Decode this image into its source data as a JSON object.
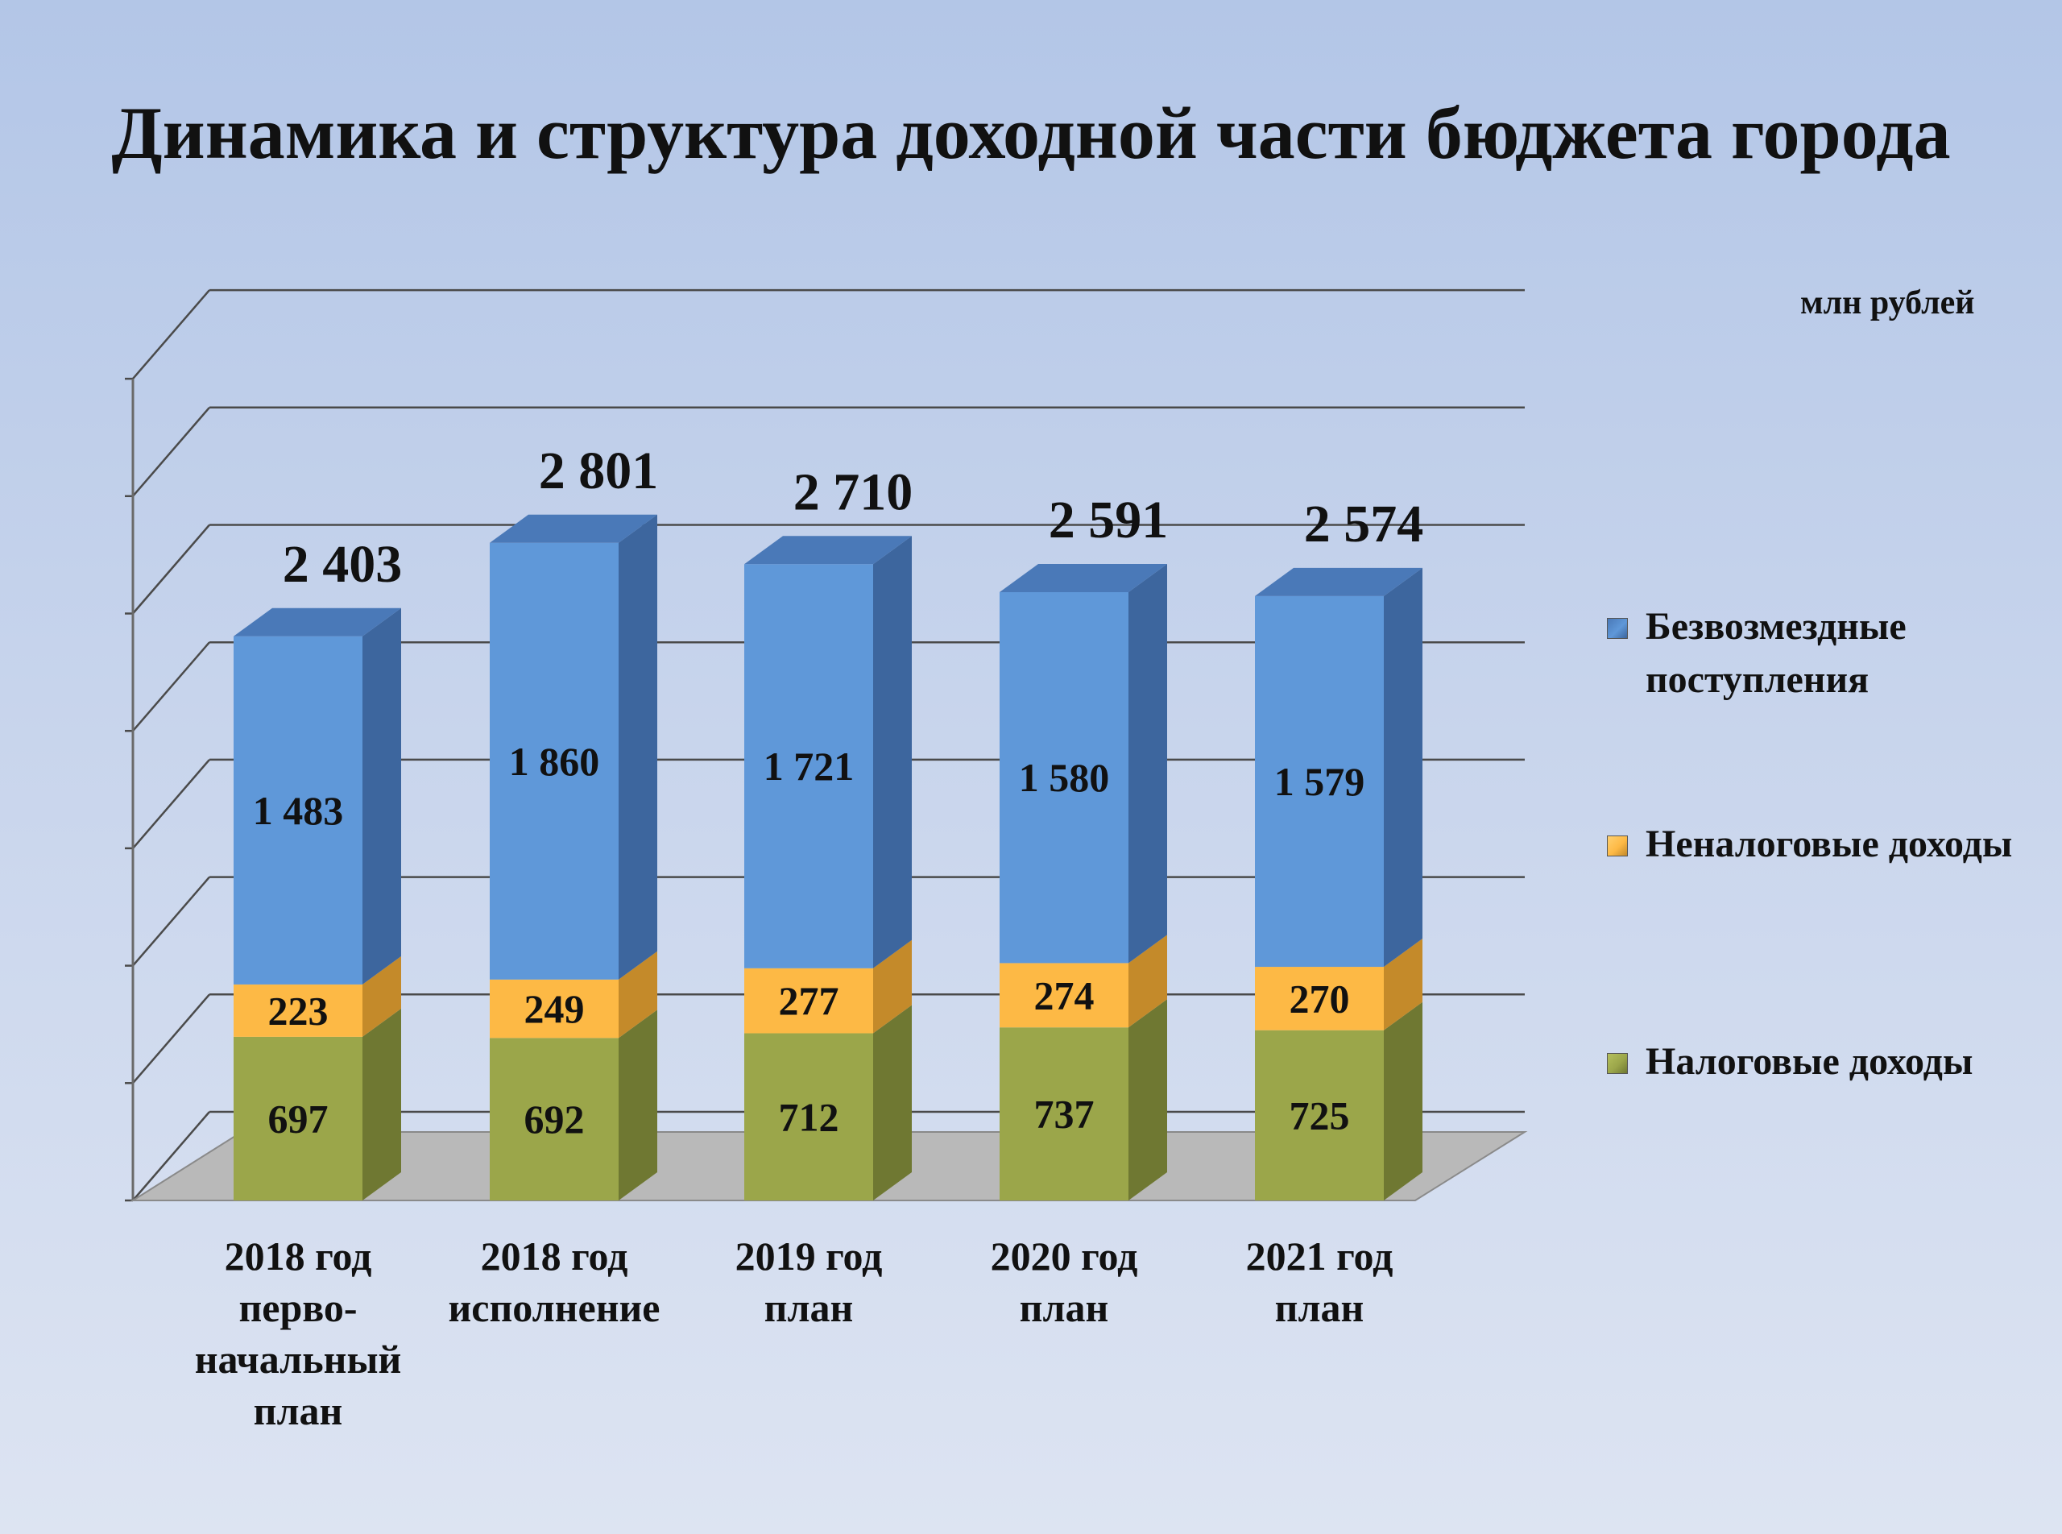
{
  "title": "Динамика и структура доходной части бюджета города",
  "units": "млн рублей",
  "chart_data": {
    "type": "bar",
    "stacked": true,
    "categories": [
      "2018 год перво-начальный план",
      "2018 год исполнение",
      "2019 год план",
      "2020 год план",
      "2021 год план"
    ],
    "category_lines": [
      [
        "2018 год",
        "перво-",
        "начальный",
        "план"
      ],
      [
        "2018 год",
        "исполнение"
      ],
      [
        "2019 год",
        "план"
      ],
      [
        "2020 год",
        "план"
      ],
      [
        "2021 год",
        "план"
      ]
    ],
    "series": [
      {
        "name": "Налоговые доходы",
        "values": [
          697,
          692,
          712,
          737,
          725
        ],
        "labels": [
          "697",
          "692",
          "712",
          "737",
          "725"
        ],
        "color": "#9ba64a",
        "side_color": "#6f7832",
        "top_color": "#b5bf5c"
      },
      {
        "name": "Неналоговые доходы",
        "values": [
          223,
          249,
          277,
          274,
          270
        ],
        "labels": [
          "223",
          "249",
          "277",
          "274",
          "270"
        ],
        "color": "#fdb945",
        "side_color": "#c48a2a",
        "top_color": "#ffd070"
      },
      {
        "name": "Безвозмездные поступления",
        "values": [
          1483,
          1860,
          1721,
          1580,
          1579
        ],
        "labels": [
          "1 483",
          "1 860",
          "1 721",
          "1 580",
          "1 579"
        ],
        "color": "#5f98d9",
        "side_color": "#3d669e",
        "top_color": "#4a79b8"
      }
    ],
    "totals": [
      "2 403",
      "2 801",
      "2 710",
      "2 591",
      "2 574"
    ],
    "ylim": [
      0,
      3500
    ],
    "grid": true,
    "legend_position": "right",
    "legend_order": [
      "Безвозмездные поступления",
      "Неналоговые доходы",
      "Налоговые доходы"
    ]
  }
}
